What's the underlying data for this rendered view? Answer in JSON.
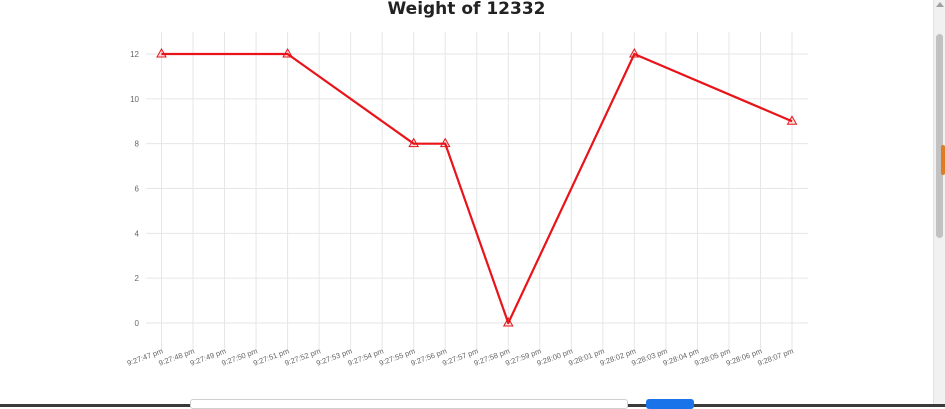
{
  "chart_data": {
    "type": "line",
    "title": "Weight of 12332",
    "categories": [
      "9:27:47 pm",
      "9:27:48 pm",
      "9:27:49 pm",
      "9:27:50 pm",
      "9:27:51 pm",
      "9:27:52 pm",
      "9:27:53 pm",
      "9:27:54 pm",
      "9:27:55 pm",
      "9:27:56 pm",
      "9:27:57 pm",
      "9:27:58 pm",
      "9:27:59 pm",
      "9:28:00 pm",
      "9:28:01 pm",
      "9:28:02 pm",
      "9:28:03 pm",
      "9:28:04 pm",
      "9:28:05 pm",
      "9:28:06 pm",
      "9:28:07 pm"
    ],
    "series": [
      {
        "color": "#e8141a",
        "marker": "triangle",
        "points": [
          {
            "x": "9:27:47 pm",
            "y": 12
          },
          {
            "x": "9:27:51 pm",
            "y": 12
          },
          {
            "x": "9:27:55 pm",
            "y": 8
          },
          {
            "x": "9:27:56 pm",
            "y": 8
          },
          {
            "x": "9:27:58 pm",
            "y": 0
          },
          {
            "x": "9:28:02 pm",
            "y": 12
          },
          {
            "x": "9:28:07 pm",
            "y": 9
          }
        ]
      }
    ],
    "ylim": [
      0,
      12
    ],
    "yticks": [
      0,
      2,
      4,
      6,
      8,
      10,
      12
    ],
    "grid": true,
    "legend": "none"
  }
}
